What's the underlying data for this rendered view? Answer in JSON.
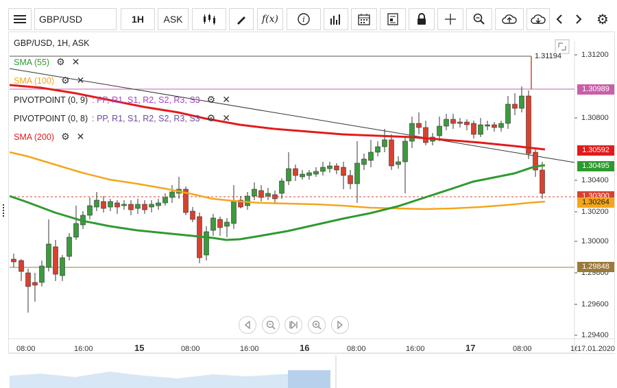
{
  "toolbar": {
    "symbol": "GBP/USD",
    "timeframe": "1H",
    "price_type": "ASK"
  },
  "chart": {
    "title": "GBP/USD, 1H, ASK",
    "indicators": [
      {
        "label": "SMA (55)",
        "color": "#2e9a2e"
      },
      {
        "label": "SMA (100)",
        "color": "#f5a51a"
      },
      {
        "label": "PIVOTPOINT (0, 9)",
        "params": ": PP, R1, S1, R2, S2, R3, S3"
      },
      {
        "label": "PIVOTPOINT (0, 8)",
        "params": ": PP, R1, S1, R2, S2, R3, S3"
      },
      {
        "label": "SMA (200)",
        "color": "#e21b1b"
      }
    ],
    "y_axis": {
      "ticks": [
        "1.31200",
        "1.31000",
        "1.30800",
        "1.30600",
        "1.30400",
        "1.30200",
        "1.30000",
        "1.29800",
        "1.29600",
        "1.29400"
      ],
      "ylim": [
        1.294,
        1.3125
      ]
    },
    "price_tags": {
      "high": "1.31194",
      "pivot_top": "1.30989",
      "sma200": "1.30592",
      "sma55": "1.30495",
      "current": "1.30300",
      "sma100": "1.30264",
      "pivot_bottom": "1.29848"
    },
    "x_axis": {
      "time_labels": [
        "08:00",
        "16:00",
        "08:00",
        "16:00",
        "08:00",
        "16:00",
        "08:00",
        "16"
      ],
      "day_labels": [
        "15",
        "16",
        "17"
      ],
      "date_label": "17.01.2020"
    }
  },
  "chart_data": {
    "type": "candlestick",
    "series": [
      {
        "name": "SMA (55)",
        "color": "#2e9a2e"
      },
      {
        "name": "SMA (100)",
        "color": "#f5a51a"
      },
      {
        "name": "SMA (200)",
        "color": "#e21b1b"
      }
    ],
    "levels": [
      1.31194,
      1.30989,
      1.30592,
      1.30495,
      1.303,
      1.30264,
      1.29848
    ]
  },
  "colors": {
    "up": "#3d9a3d",
    "down": "#d9412f",
    "sma55": "#2e9a2e",
    "sma100": "#f5a51a",
    "sma200": "#e21b1b",
    "pivot_top": "#c95fa8",
    "pivot_bottom": "#9b7a3a"
  }
}
